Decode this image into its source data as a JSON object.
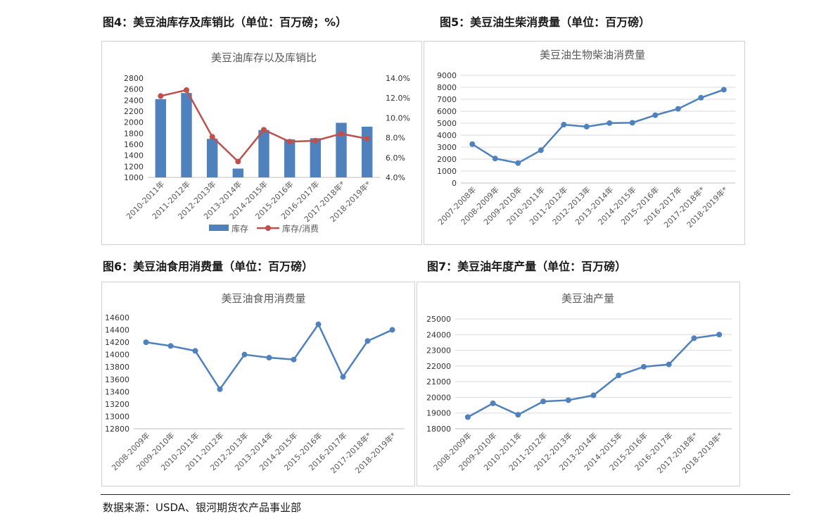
{
  "figures": {
    "fig4": {
      "heading": "图4：美豆油库存及库销比（单位：百万磅；%）"
    },
    "fig5": {
      "heading": "图5：美豆油生柴消费量（单位：百万磅）"
    },
    "fig6": {
      "heading": "图6：美豆油食用消费量（单位：百万磅）"
    },
    "fig7": {
      "heading": "图7：美豆油年度产量（单位：百万磅）"
    }
  },
  "source": "数据来源：USDA、银河期货农产品事业部",
  "colors": {
    "bar": "#4f81bd",
    "line_red": "#c0504d",
    "line_blue": "#4f81bd",
    "grid": "#d9d9d9",
    "text": "#595959"
  },
  "chart_data": [
    {
      "id": "fig4",
      "type": "bar",
      "title": "美豆油库存以及库销比",
      "categories": [
        "2010-2011年",
        "2011-2012年",
        "2012-2013年",
        "2013-2014年",
        "2014-2015年",
        "2015-2016年",
        "2016-2017年",
        "2017-2018年*",
        "2018-2019年*"
      ],
      "series": [
        {
          "name": "库存",
          "type": "bar",
          "axis": "left",
          "values": [
            2420,
            2530,
            1700,
            1160,
            1860,
            1690,
            1710,
            1990,
            1920
          ]
        },
        {
          "name": "库存/消费",
          "type": "line",
          "axis": "right",
          "values": [
            12.2,
            12.8,
            8.1,
            5.6,
            8.8,
            7.6,
            7.7,
            8.4,
            7.9
          ]
        }
      ],
      "ylim": [
        1000,
        2800
      ],
      "yticks": [
        1000,
        1200,
        1400,
        1600,
        1800,
        2000,
        2200,
        2400,
        2600,
        2800
      ],
      "y2lim": [
        4,
        14
      ],
      "y2ticks": [
        "4.0%",
        "6.0%",
        "8.0%",
        "10.0%",
        "12.0%",
        "14.0%"
      ],
      "legend": "bottom",
      "grid": false
    },
    {
      "id": "fig5",
      "type": "line",
      "title": "美豆油生物柴油消费量",
      "categories": [
        "2007-2008年",
        "2008-2009年",
        "2009-2010年",
        "2010-2011年",
        "2011-2012年",
        "2012-2013年",
        "2013-2014年",
        "2014-2015年",
        "2015-2016年",
        "2016-2017年",
        "2017-2018年*",
        "2018-2019年*"
      ],
      "values": [
        3250,
        2050,
        1670,
        2740,
        4880,
        4710,
        5010,
        5040,
        5670,
        6200,
        7130,
        7800
      ],
      "ylim": [
        0,
        9000
      ],
      "yticks": [
        0,
        1000,
        2000,
        3000,
        4000,
        5000,
        6000,
        7000,
        8000,
        9000
      ],
      "grid": true
    },
    {
      "id": "fig6",
      "type": "line",
      "title": "美豆油食用消费量",
      "categories": [
        "2008-2009年",
        "2009-2010年",
        "2010-2011年",
        "2011-2012年",
        "2012-2013年",
        "2013-2014年",
        "2014-2015年",
        "2015-2016年",
        "2016-2017年",
        "2017-2018年*",
        "2018-2019年*"
      ],
      "values": [
        14200,
        14140,
        14060,
        13440,
        14000,
        13950,
        13920,
        14490,
        13640,
        14220,
        14400
      ],
      "ylim": [
        12800,
        14600
      ],
      "yticks": [
        12800,
        13000,
        13200,
        13400,
        13600,
        13800,
        14000,
        14200,
        14400,
        14600
      ],
      "grid": false
    },
    {
      "id": "fig7",
      "type": "line",
      "title": "美豆油产量",
      "categories": [
        "2008-2009年",
        "2009-2010年",
        "2010-2011年",
        "2011-2012年",
        "2012-2013年",
        "2013-2014年",
        "2014-2015年",
        "2015-2016年",
        "2016-2017年",
        "2017-2018年*",
        "2018-2019年*"
      ],
      "values": [
        18740,
        19620,
        18890,
        19740,
        19820,
        20130,
        21400,
        21950,
        22100,
        23770,
        24000
      ],
      "ylim": [
        18000,
        25000
      ],
      "yticks": [
        18000,
        19000,
        20000,
        21000,
        22000,
        23000,
        24000,
        25000
      ],
      "grid": true
    }
  ]
}
